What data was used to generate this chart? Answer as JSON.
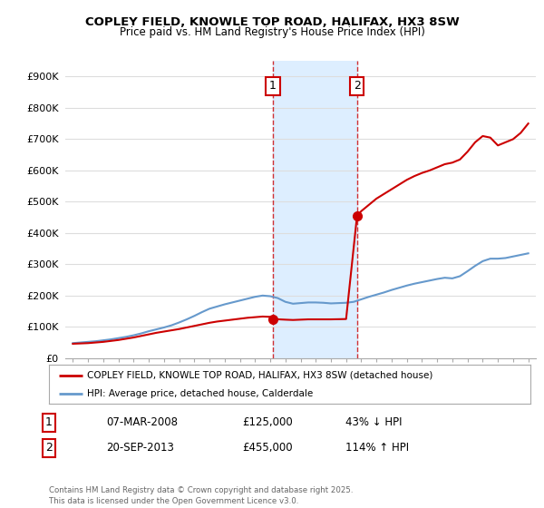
{
  "title_line1": "COPLEY FIELD, KNOWLE TOP ROAD, HALIFAX, HX3 8SW",
  "title_line2": "Price paid vs. HM Land Registry's House Price Index (HPI)",
  "legend_label_red": "COPLEY FIELD, KNOWLE TOP ROAD, HALIFAX, HX3 8SW (detached house)",
  "legend_label_blue": "HPI: Average price, detached house, Calderdale",
  "transaction1": {
    "label": "1",
    "date": "07-MAR-2008",
    "price": 125000,
    "hpi_diff": "43% ↓ HPI",
    "x": 2008.18
  },
  "transaction2": {
    "label": "2",
    "date": "20-SEP-2013",
    "price": 455000,
    "hpi_diff": "114% ↑ HPI",
    "x": 2013.72
  },
  "footer": "Contains HM Land Registry data © Crown copyright and database right 2025.\nThis data is licensed under the Open Government Licence v3.0.",
  "ylim": [
    0,
    950000
  ],
  "xlim": [
    1994.5,
    2025.5
  ],
  "yticks": [
    0,
    100000,
    200000,
    300000,
    400000,
    500000,
    600000,
    700000,
    800000,
    900000
  ],
  "ytick_labels": [
    "£0",
    "£100K",
    "£200K",
    "£300K",
    "£400K",
    "£500K",
    "£600K",
    "£700K",
    "£800K",
    "£900K"
  ],
  "xticks": [
    1995,
    1996,
    1997,
    1998,
    1999,
    2000,
    2001,
    2002,
    2003,
    2004,
    2005,
    2006,
    2007,
    2008,
    2009,
    2010,
    2011,
    2012,
    2013,
    2014,
    2015,
    2016,
    2017,
    2018,
    2019,
    2020,
    2021,
    2022,
    2023,
    2024,
    2025
  ],
  "red_color": "#cc0000",
  "blue_color": "#6699cc",
  "shade_color": "#ddeeff",
  "box_border_color": "#cc0000",
  "background_color": "#ffffff",
  "grid_color": "#dddddd",
  "hpi_years": [
    1995,
    1995.5,
    1996,
    1996.5,
    1997,
    1997.5,
    1998,
    1998.5,
    1999,
    1999.5,
    2000,
    2000.5,
    2001,
    2001.5,
    2002,
    2002.5,
    2003,
    2003.5,
    2004,
    2004.5,
    2005,
    2005.5,
    2006,
    2006.5,
    2007,
    2007.5,
    2008,
    2008.5,
    2009,
    2009.5,
    2010,
    2010.5,
    2011,
    2011.5,
    2012,
    2012.5,
    2013,
    2013.5,
    2014,
    2014.5,
    2015,
    2015.5,
    2016,
    2016.5,
    2017,
    2017.5,
    2018,
    2018.5,
    2019,
    2019.5,
    2020,
    2020.5,
    2021,
    2021.5,
    2022,
    2022.5,
    2023,
    2023.5,
    2024,
    2024.5,
    2025
  ],
  "hpi_values": [
    48000,
    50000,
    52000,
    54000,
    57000,
    60000,
    64000,
    68000,
    73000,
    79000,
    86000,
    92000,
    98000,
    105000,
    114000,
    124000,
    135000,
    147000,
    158000,
    165000,
    172000,
    178000,
    184000,
    190000,
    196000,
    200000,
    198000,
    192000,
    180000,
    174000,
    176000,
    178000,
    178000,
    177000,
    175000,
    176000,
    177000,
    180000,
    188000,
    196000,
    203000,
    210000,
    218000,
    225000,
    232000,
    238000,
    243000,
    248000,
    253000,
    257000,
    255000,
    262000,
    278000,
    295000,
    310000,
    318000,
    318000,
    320000,
    325000,
    330000,
    335000
  ],
  "prop_years": [
    1995,
    1995.5,
    1996,
    1996.5,
    1997,
    1997.5,
    1998,
    1998.5,
    1999,
    1999.5,
    2000,
    2000.5,
    2001,
    2001.5,
    2002,
    2002.5,
    2003,
    2003.5,
    2004,
    2004.5,
    2005,
    2005.5,
    2006,
    2006.5,
    2007,
    2007.5,
    2008,
    2008.18,
    2009,
    2009.5,
    2010,
    2010.5,
    2011,
    2011.5,
    2012,
    2012.5,
    2013,
    2013.72,
    2014,
    2014.5,
    2015,
    2015.5,
    2016,
    2016.5,
    2017,
    2017.5,
    2018,
    2018.5,
    2019,
    2019.5,
    2020,
    2020.5,
    2021,
    2021.5,
    2022,
    2022.5,
    2023,
    2023.5,
    2024,
    2024.5,
    2025
  ],
  "prop_values": [
    46000,
    47000,
    48000,
    50000,
    52000,
    55000,
    58000,
    62000,
    66000,
    71000,
    76000,
    81000,
    85000,
    89000,
    93000,
    98000,
    103000,
    108000,
    113000,
    117000,
    120000,
    123000,
    126000,
    129000,
    131000,
    133000,
    132000,
    125000,
    123000,
    122000,
    123000,
    124000,
    124000,
    124000,
    124000,
    124500,
    125000,
    455000,
    470000,
    490000,
    510000,
    525000,
    540000,
    555000,
    570000,
    582000,
    592000,
    600000,
    610000,
    620000,
    625000,
    635000,
    660000,
    690000,
    710000,
    705000,
    680000,
    690000,
    700000,
    720000,
    750000
  ]
}
